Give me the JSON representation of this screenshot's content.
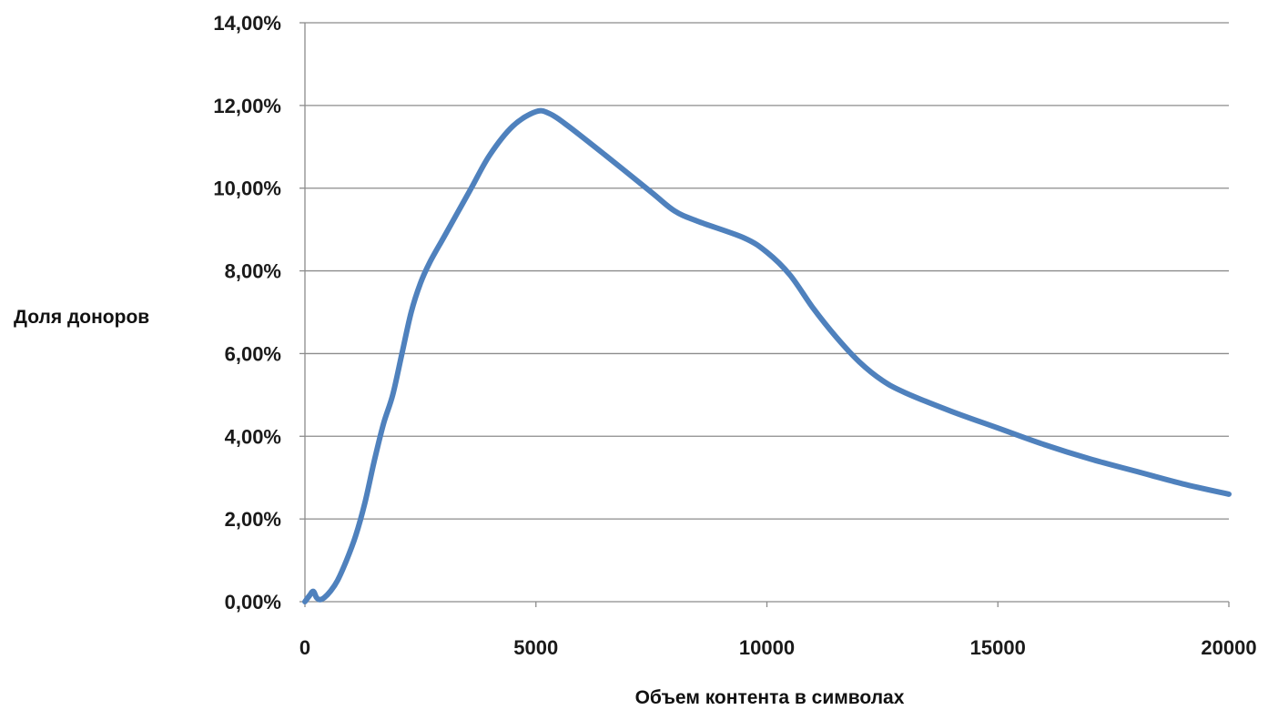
{
  "chart_data": {
    "type": "line",
    "title": "",
    "xlabel": "Объем контента в символах",
    "ylabel": "Доля доноров",
    "xlim": [
      0,
      20000
    ],
    "ylim": [
      0,
      14
    ],
    "x_ticks": [
      0,
      5000,
      10000,
      15000,
      20000
    ],
    "x_tick_labels": [
      "0",
      "5000",
      "10000",
      "15000",
      "20000"
    ],
    "y_ticks": [
      0,
      2,
      4,
      6,
      8,
      10,
      12,
      14
    ],
    "y_tick_labels": [
      "0,00%",
      "2,00%",
      "4,00%",
      "6,00%",
      "8,00%",
      "10,00%",
      "12,00%",
      "14,00%"
    ],
    "y_unit": "percent",
    "grid": "horizontal",
    "legend": "none",
    "series": [
      {
        "color": "#4f81bd",
        "points": [
          [
            0,
            0.0
          ],
          [
            100,
            0.15
          ],
          [
            180,
            0.25
          ],
          [
            250,
            0.1
          ],
          [
            320,
            0.05
          ],
          [
            420,
            0.1
          ],
          [
            550,
            0.25
          ],
          [
            700,
            0.5
          ],
          [
            900,
            1.0
          ],
          [
            1100,
            1.6
          ],
          [
            1300,
            2.4
          ],
          [
            1500,
            3.4
          ],
          [
            1700,
            4.3
          ],
          [
            1900,
            5.0
          ],
          [
            2100,
            6.0
          ],
          [
            2300,
            7.0
          ],
          [
            2500,
            7.7
          ],
          [
            2700,
            8.2
          ],
          [
            3000,
            8.8
          ],
          [
            3300,
            9.4
          ],
          [
            3600,
            10.0
          ],
          [
            4000,
            10.8
          ],
          [
            4500,
            11.5
          ],
          [
            5000,
            11.85
          ],
          [
            5300,
            11.8
          ],
          [
            5700,
            11.5
          ],
          [
            6500,
            10.8
          ],
          [
            7500,
            9.9
          ],
          [
            8000,
            9.45
          ],
          [
            8500,
            9.2
          ],
          [
            9500,
            8.8
          ],
          [
            10000,
            8.45
          ],
          [
            10500,
            7.9
          ],
          [
            11000,
            7.1
          ],
          [
            11500,
            6.4
          ],
          [
            12000,
            5.8
          ],
          [
            12500,
            5.35
          ],
          [
            13000,
            5.05
          ],
          [
            14000,
            4.6
          ],
          [
            15000,
            4.2
          ],
          [
            16000,
            3.8
          ],
          [
            17000,
            3.45
          ],
          [
            18000,
            3.15
          ],
          [
            19000,
            2.85
          ],
          [
            20000,
            2.6
          ]
        ]
      }
    ]
  }
}
